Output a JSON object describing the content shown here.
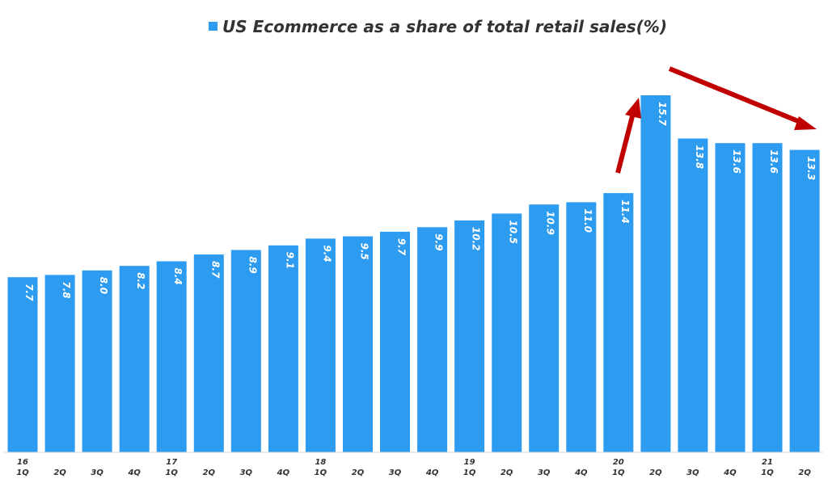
{
  "chart_data": {
    "type": "bar",
    "title": "",
    "legend": [
      "US Ecommerce as a share of total retail sales(%)"
    ],
    "legend_position": "top-center",
    "categories": [
      "16 1Q",
      "2Q",
      "3Q",
      "4Q",
      "17 1Q",
      "2Q",
      "3Q",
      "4Q",
      "18 1Q",
      "2Q",
      "3Q",
      "4Q",
      "19 1Q",
      "2Q",
      "3Q",
      "4Q",
      "20 1Q",
      "2Q",
      "3Q",
      "4Q",
      "21 1Q",
      "2Q"
    ],
    "category_years": [
      "16",
      "",
      "",
      "",
      "17",
      "",
      "",
      "",
      "18",
      "",
      "",
      "",
      "19",
      "",
      "",
      "",
      "20",
      "",
      "",
      "",
      "21",
      ""
    ],
    "category_quarters": [
      "1Q",
      "2Q",
      "3Q",
      "4Q",
      "1Q",
      "2Q",
      "3Q",
      "4Q",
      "1Q",
      "2Q",
      "3Q",
      "4Q",
      "1Q",
      "2Q",
      "3Q",
      "4Q",
      "1Q",
      "2Q",
      "3Q",
      "4Q",
      "1Q",
      "2Q"
    ],
    "values": [
      7.7,
      7.8,
      8.0,
      8.2,
      8.4,
      8.7,
      8.9,
      9.1,
      9.4,
      9.5,
      9.7,
      9.9,
      10.2,
      10.5,
      10.9,
      11.0,
      11.4,
      15.7,
      13.8,
      13.6,
      13.6,
      13.3
    ],
    "value_labels": [
      "7.7",
      "7.8",
      "8.0",
      "8.2",
      "8.4",
      "8.7",
      "8.9",
      "9.1",
      "9.4",
      "9.5",
      "9.7",
      "9.9",
      "10.2",
      "10.5",
      "10.9",
      "11.0",
      "11.4",
      "15.7",
      "13.8",
      "13.6",
      "13.6",
      "13.3"
    ],
    "ylim": [
      0,
      18
    ],
    "xlabel": "",
    "ylabel": "",
    "grid": false,
    "annotations": [
      "up-arrow to 2Q 2020 peak",
      "down-arrow after peak"
    ],
    "colors": {
      "bar": "#2C9BF0",
      "arrow": "#C00000",
      "text": "#333333",
      "value_text": "#FFFFFF"
    }
  }
}
